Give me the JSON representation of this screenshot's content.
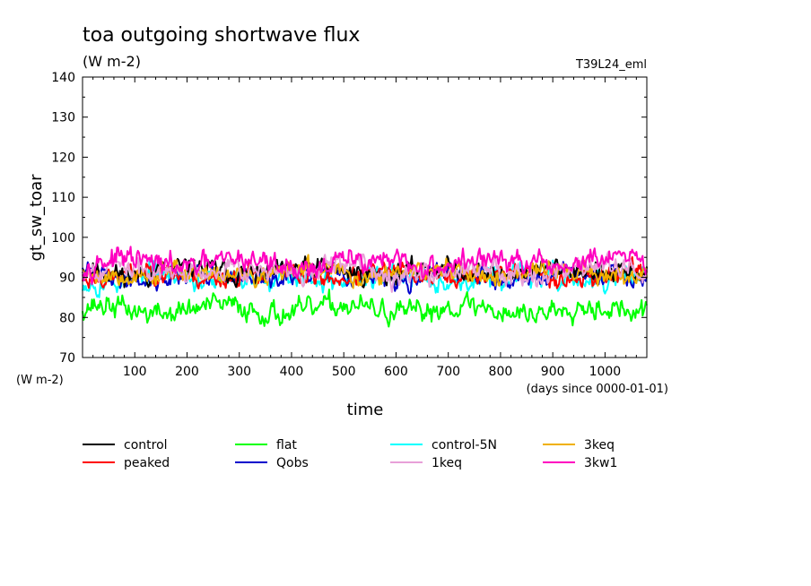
{
  "chart_data": {
    "type": "line",
    "title": "toa outgoing shortwave flux",
    "subtitle": "(W m-2)",
    "tag": "T39L24_eml",
    "ylabel": "gt_sw_toar",
    "yunit": "(W m-2)",
    "xlabel": "time",
    "xunit": "(days since 0000-01-01)",
    "xlim": [
      0,
      1080
    ],
    "ylim": [
      70,
      140
    ],
    "xticks": [
      100,
      200,
      300,
      400,
      500,
      600,
      700,
      800,
      900,
      1000
    ],
    "yticks": [
      70,
      80,
      90,
      100,
      110,
      120,
      130,
      140
    ],
    "grid": false,
    "legend_position": "bottom",
    "series": [
      {
        "name": "control",
        "color": "#000000",
        "mean": 91.5,
        "amp": 1.6,
        "seed": 11
      },
      {
        "name": "peaked",
        "color": "#ff0000",
        "mean": 90.5,
        "amp": 1.5,
        "seed": 23
      },
      {
        "name": "flat",
        "color": "#00ff00",
        "mean": 82.0,
        "amp": 1.8,
        "seed": 37
      },
      {
        "name": "Qobs",
        "color": "#0000cc",
        "mean": 90.2,
        "amp": 1.5,
        "seed": 41
      },
      {
        "name": "control-5N",
        "color": "#00ffff",
        "mean": 89.8,
        "amp": 1.8,
        "seed": 53
      },
      {
        "name": "1keq",
        "color": "#e8a0d8",
        "mean": 91.8,
        "amp": 1.7,
        "seed": 67
      },
      {
        "name": "3keq",
        "color": "#f0b000",
        "mean": 91.0,
        "amp": 1.6,
        "seed": 79
      },
      {
        "name": "3kw1",
        "color": "#ff00c0",
        "mean": 93.5,
        "amp": 1.8,
        "seed": 97
      }
    ]
  }
}
